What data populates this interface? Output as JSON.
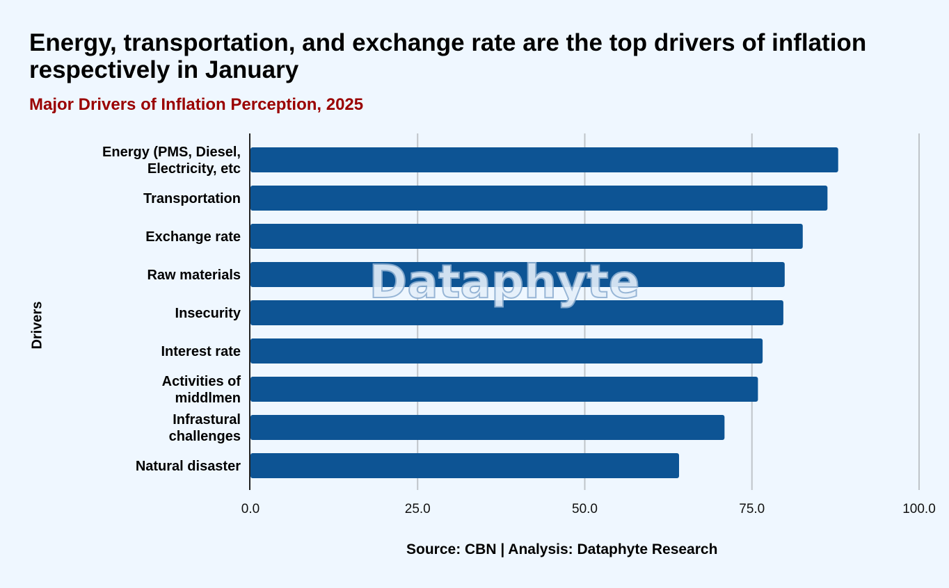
{
  "title": "Energy, transportation, and exchange rate are the top drivers of inflation respectively in January",
  "subtitle": "Major Drivers of Inflation Perception, 2025",
  "source": "Source: CBN | Analysis: Dataphyte Research",
  "watermark": "Dataphyte",
  "colors": {
    "bar": "#0d5494",
    "subtitle": "#9a0000",
    "grid": "#bfc4c9",
    "background": "#eff7ff"
  },
  "chart_data": {
    "type": "bar",
    "orientation": "horizontal",
    "title": "Major Drivers of Inflation Perception, 2025",
    "xlabel": "",
    "ylabel": "Drivers",
    "categories": [
      [
        "Energy (PMS, Diesel,",
        "Electricity, etc"
      ],
      [
        "Transportation"
      ],
      [
        "Exchange rate"
      ],
      [
        "Raw materials"
      ],
      [
        "Insecurity"
      ],
      [
        "Interest rate"
      ],
      [
        "Activities of",
        "middlmen"
      ],
      [
        "Infrastural",
        "challenges"
      ],
      [
        "Natural disaster"
      ]
    ],
    "values": [
      87.9,
      86.3,
      82.6,
      79.9,
      79.7,
      76.6,
      75.9,
      70.9,
      64.1
    ],
    "xlim": [
      0,
      100
    ],
    "xticks": [
      "0.0",
      "25.0",
      "50.0",
      "75.0",
      "100.0"
    ],
    "grid": true
  }
}
